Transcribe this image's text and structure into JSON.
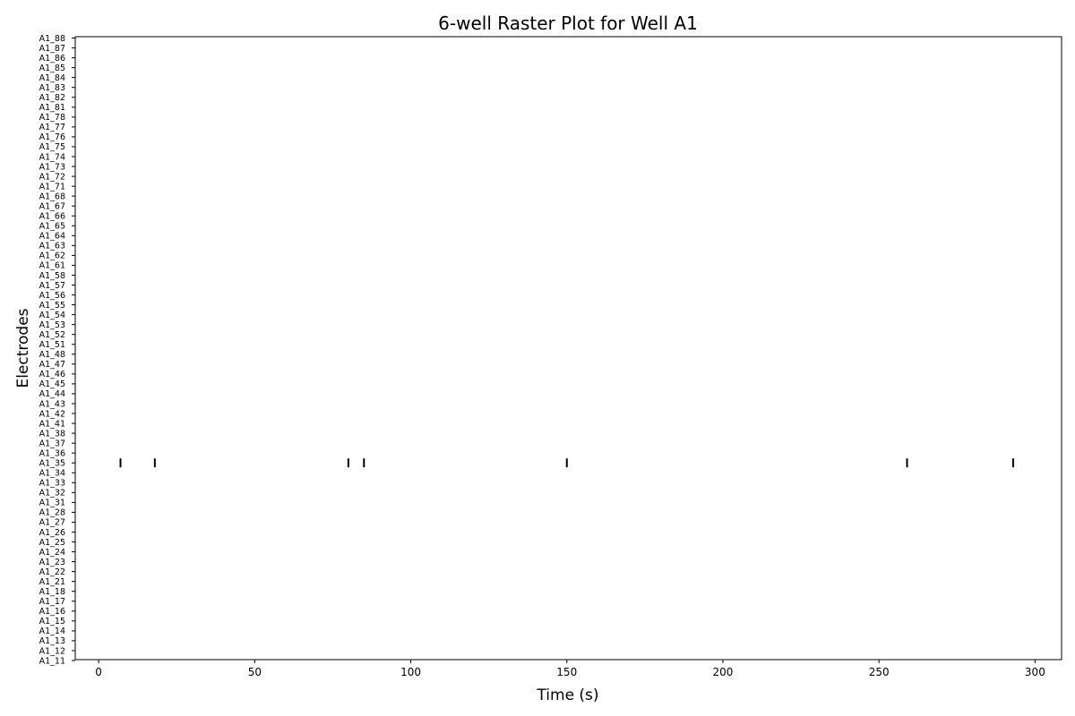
{
  "chart_data": {
    "type": "scatter",
    "marker": "vertical-line",
    "title": "6-well Raster Plot for Well A1",
    "xlabel": "Time (s)",
    "ylabel": "Electrodes",
    "xlim": [
      -7.5,
      308.5
    ],
    "xticks": [
      0,
      50,
      100,
      150,
      200,
      250,
      300
    ],
    "categories": [
      "A1_11",
      "A1_12",
      "A1_13",
      "A1_14",
      "A1_15",
      "A1_16",
      "A1_17",
      "A1_18",
      "A1_21",
      "A1_22",
      "A1_23",
      "A1_24",
      "A1_25",
      "A1_26",
      "A1_27",
      "A1_28",
      "A1_31",
      "A1_32",
      "A1_33",
      "A1_34",
      "A1_35",
      "A1_36",
      "A1_37",
      "A1_38",
      "A1_41",
      "A1_42",
      "A1_43",
      "A1_44",
      "A1_45",
      "A1_46",
      "A1_47",
      "A1_48",
      "A1_51",
      "A1_52",
      "A1_53",
      "A1_54",
      "A1_55",
      "A1_56",
      "A1_57",
      "A1_58",
      "A1_61",
      "A1_62",
      "A1_63",
      "A1_64",
      "A1_65",
      "A1_66",
      "A1_67",
      "A1_68",
      "A1_71",
      "A1_72",
      "A1_73",
      "A1_74",
      "A1_75",
      "A1_76",
      "A1_77",
      "A1_78",
      "A1_81",
      "A1_82",
      "A1_83",
      "A1_84",
      "A1_85",
      "A1_86",
      "A1_87",
      "A1_88"
    ],
    "series": [
      {
        "values": [
          {
            "electrode": "A1_35",
            "times": [
              7,
              18,
              80,
              85,
              150,
              259,
              293
            ]
          }
        ]
      }
    ],
    "grid": false,
    "colors": {
      "spike": "#000000",
      "axis": "#000000",
      "background": "#ffffff"
    }
  }
}
